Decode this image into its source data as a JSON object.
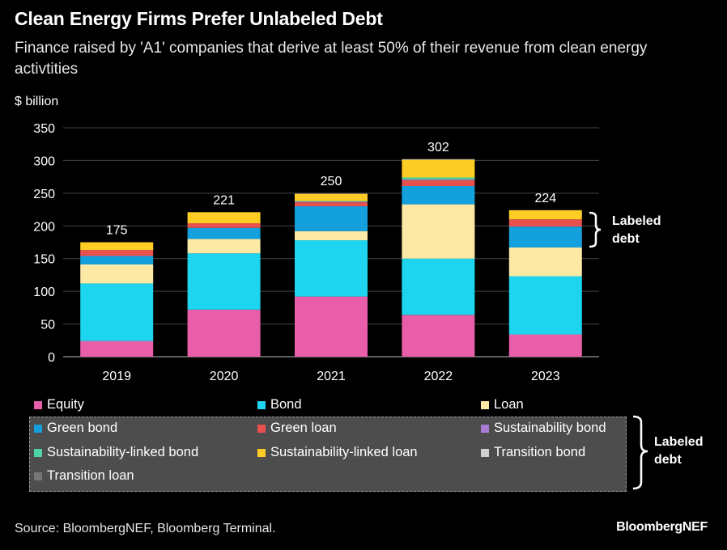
{
  "header": {
    "title": "Clean Energy Firms Prefer Unlabeled Debt",
    "subtitle": "Finance raised by 'A1' companies that derive at least 50% of their revenue from clean energy activtities"
  },
  "source": "Source: BloombergNEF, Bloomberg Terminal.",
  "logo": "BloombergNEF",
  "bracket_labels": {
    "chart": "Labeled debt",
    "legend": "Labeled debt"
  },
  "chart_data": {
    "type": "bar",
    "stacked": true,
    "ylabel": "$ billion",
    "ylim": [
      0,
      350
    ],
    "yticks": [
      0,
      50,
      100,
      150,
      200,
      250,
      300,
      350
    ],
    "grid": true,
    "categories": [
      "2019",
      "2020",
      "2021",
      "2022",
      "2023"
    ],
    "totals": [
      175,
      221,
      250,
      302,
      224
    ],
    "series": [
      {
        "name": "Equity",
        "color": "#e95ea8",
        "values": [
          24,
          72,
          92,
          64,
          34
        ]
      },
      {
        "name": "Bond",
        "color": "#1dd5ef",
        "values": [
          88,
          86,
          86,
          86,
          89
        ]
      },
      {
        "name": "Loan",
        "color": "#fde9a6",
        "values": [
          29,
          22,
          14,
          83,
          44
        ]
      },
      {
        "name": "Green bond",
        "color": "#149fdd",
        "values": [
          13,
          17,
          38,
          28,
          32
        ]
      },
      {
        "name": "Green loan",
        "color": "#e9514e",
        "values": [
          9,
          7,
          6,
          9,
          11
        ]
      },
      {
        "name": "Sustainability bond",
        "color": "#a97ad6",
        "values": [
          0,
          0,
          1,
          1,
          0
        ]
      },
      {
        "name": "Sustainability-linked bond",
        "color": "#4fd4aa",
        "values": [
          0,
          0,
          1,
          3,
          0
        ]
      },
      {
        "name": "Sustainability-linked loan",
        "color": "#fdcc25",
        "values": [
          12,
          17,
          11,
          27,
          14
        ]
      },
      {
        "name": "Transition bond",
        "color": "#d0d0d0",
        "values": [
          0,
          0,
          0,
          1,
          0
        ]
      },
      {
        "name": "Transition loan",
        "color": "#777777",
        "values": [
          0,
          0,
          1,
          0,
          0
        ]
      }
    ],
    "legend_position": "bottom"
  }
}
